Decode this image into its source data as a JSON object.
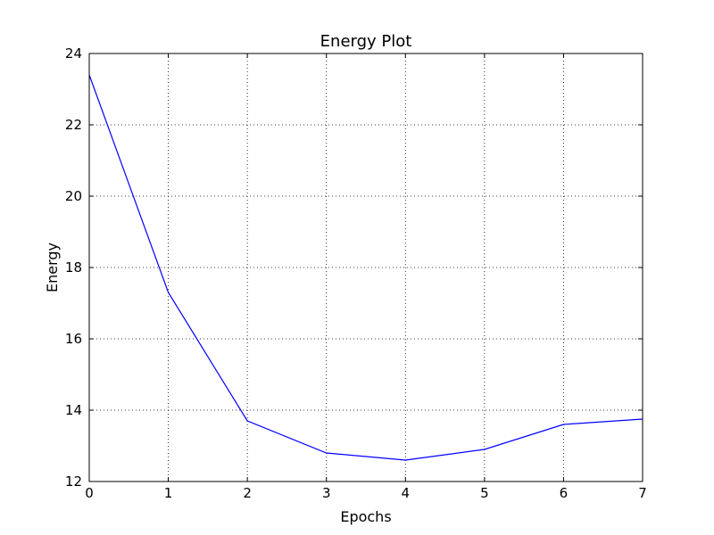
{
  "chart_data": {
    "type": "line",
    "title": "Energy Plot",
    "xlabel": "Epochs",
    "ylabel": "Energy",
    "xlim": [
      0,
      7
    ],
    "ylim": [
      12,
      24
    ],
    "xticks": [
      0,
      1,
      2,
      3,
      4,
      5,
      6,
      7
    ],
    "yticks": [
      12,
      14,
      16,
      18,
      20,
      22,
      24
    ],
    "grid": true,
    "series": [
      {
        "color": "#0000ff",
        "x": [
          0,
          1,
          2,
          3,
          4,
          5,
          6,
          7
        ],
        "y": [
          23.4,
          17.3,
          13.7,
          12.8,
          12.6,
          12.9,
          13.6,
          13.75
        ]
      }
    ]
  }
}
